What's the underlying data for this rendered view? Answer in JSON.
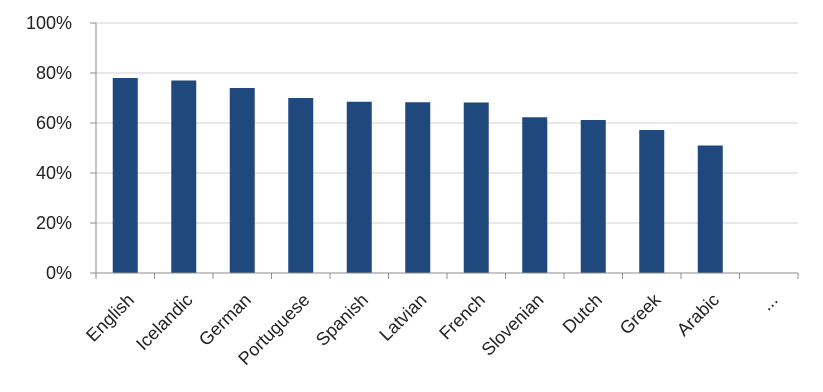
{
  "chart_data": {
    "type": "bar",
    "categories": [
      "English",
      "Icelandic",
      "German",
      "Portuguese",
      "Spanish",
      "Latvian",
      "French",
      "Slovenian",
      "Dutch",
      "Greek",
      "Arabic",
      "..."
    ],
    "values": [
      78,
      77,
      74,
      70,
      68.5,
      68.3,
      68.2,
      62.3,
      61.2,
      57.2,
      51,
      null
    ],
    "y_unit": "%",
    "ylim": [
      0,
      100
    ],
    "y_ticks": [
      0,
      20,
      40,
      60,
      80,
      100
    ],
    "y_tick_labels": [
      "0%",
      "20%",
      "40%",
      "60%",
      "80%",
      "100%"
    ],
    "grid": true,
    "legend": "none",
    "title": "",
    "xlabel": "",
    "ylabel": "",
    "bar_color": "#1f497d"
  }
}
